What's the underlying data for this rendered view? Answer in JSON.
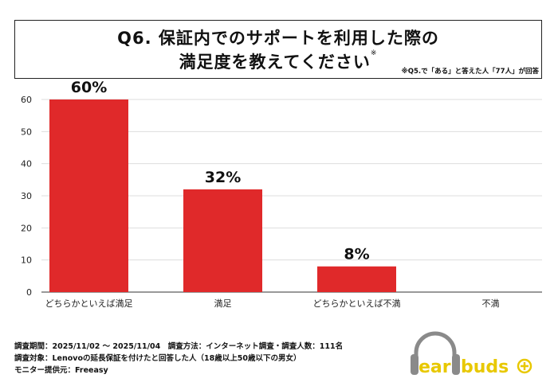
{
  "title": {
    "line1": "Q6. 保証内でのサポートを利用した際の",
    "line2": "満足度を教えてください",
    "mark": "※",
    "note": "※Q5.で「ある」と答えた人「77人」が回答"
  },
  "chart_data": {
    "type": "bar",
    "categories": [
      "どちらかといえば満足",
      "満足",
      "どちらかといえば不満",
      "不満"
    ],
    "values": [
      60,
      32,
      8,
      null
    ],
    "data_labels": [
      "60%",
      "32%",
      "8%",
      ""
    ],
    "yticks": [
      "0",
      "10",
      "20",
      "30",
      "40",
      "50",
      "60"
    ],
    "ylim": [
      0,
      60
    ],
    "grid": true,
    "bar_color": "#e0292a",
    "xlabel": "",
    "ylabel": ""
  },
  "footer": {
    "line1": "調査期間：2025/11/02 ～ 2025/11/04　調査方法：インターネット調査・調査人数：111名",
    "line2": "調査対象：Lenovoの延長保証を付けたと回答した人（18歳以上50歳以下の男女）",
    "line3": "モニター提供元：Freeasy"
  },
  "logo": {
    "text": "earbuds",
    "accent": "#f0d000"
  }
}
